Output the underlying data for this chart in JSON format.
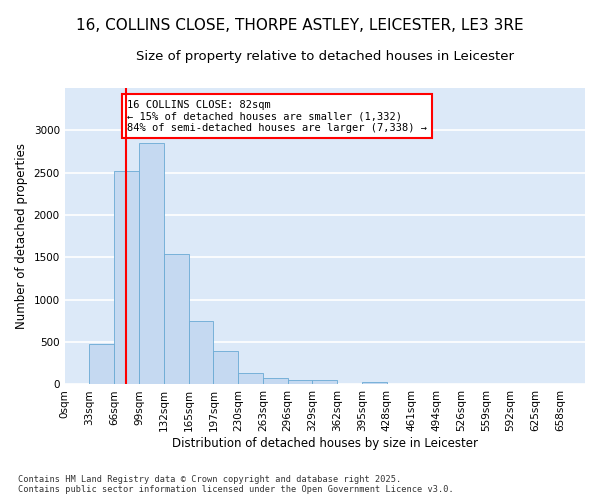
{
  "title": "16, COLLINS CLOSE, THORPE ASTLEY, LEICESTER, LE3 3RE",
  "subtitle": "Size of property relative to detached houses in Leicester",
  "xlabel": "Distribution of detached houses by size in Leicester",
  "ylabel": "Number of detached properties",
  "bin_labels": [
    "0sqm",
    "33sqm",
    "66sqm",
    "99sqm",
    "132sqm",
    "165sqm",
    "197sqm",
    "230sqm",
    "263sqm",
    "296sqm",
    "329sqm",
    "362sqm",
    "395sqm",
    "428sqm",
    "461sqm",
    "494sqm",
    "526sqm",
    "559sqm",
    "592sqm",
    "625sqm",
    "658sqm"
  ],
  "bar_heights": [
    10,
    480,
    2520,
    2850,
    1540,
    750,
    390,
    140,
    75,
    55,
    55,
    0,
    25,
    0,
    0,
    0,
    0,
    0,
    0,
    0,
    0
  ],
  "bar_color": "#c5d9f1",
  "bar_edge_color": "#6aaad4",
  "background_color": "#dce9f8",
  "fig_background": "#ffffff",
  "grid_color": "#ffffff",
  "red_line_x": 2.48,
  "annotation_text": "16 COLLINS CLOSE: 82sqm\n← 15% of detached houses are smaller (1,332)\n84% of semi-detached houses are larger (7,338) →",
  "ylim": [
    0,
    3500
  ],
  "yticks": [
    0,
    500,
    1000,
    1500,
    2000,
    2500,
    3000
  ],
  "footnote": "Contains HM Land Registry data © Crown copyright and database right 2025.\nContains public sector information licensed under the Open Government Licence v3.0.",
  "title_fontsize": 11,
  "subtitle_fontsize": 9.5,
  "label_fontsize": 8.5,
  "tick_fontsize": 7.5,
  "annot_fontsize": 7.5
}
